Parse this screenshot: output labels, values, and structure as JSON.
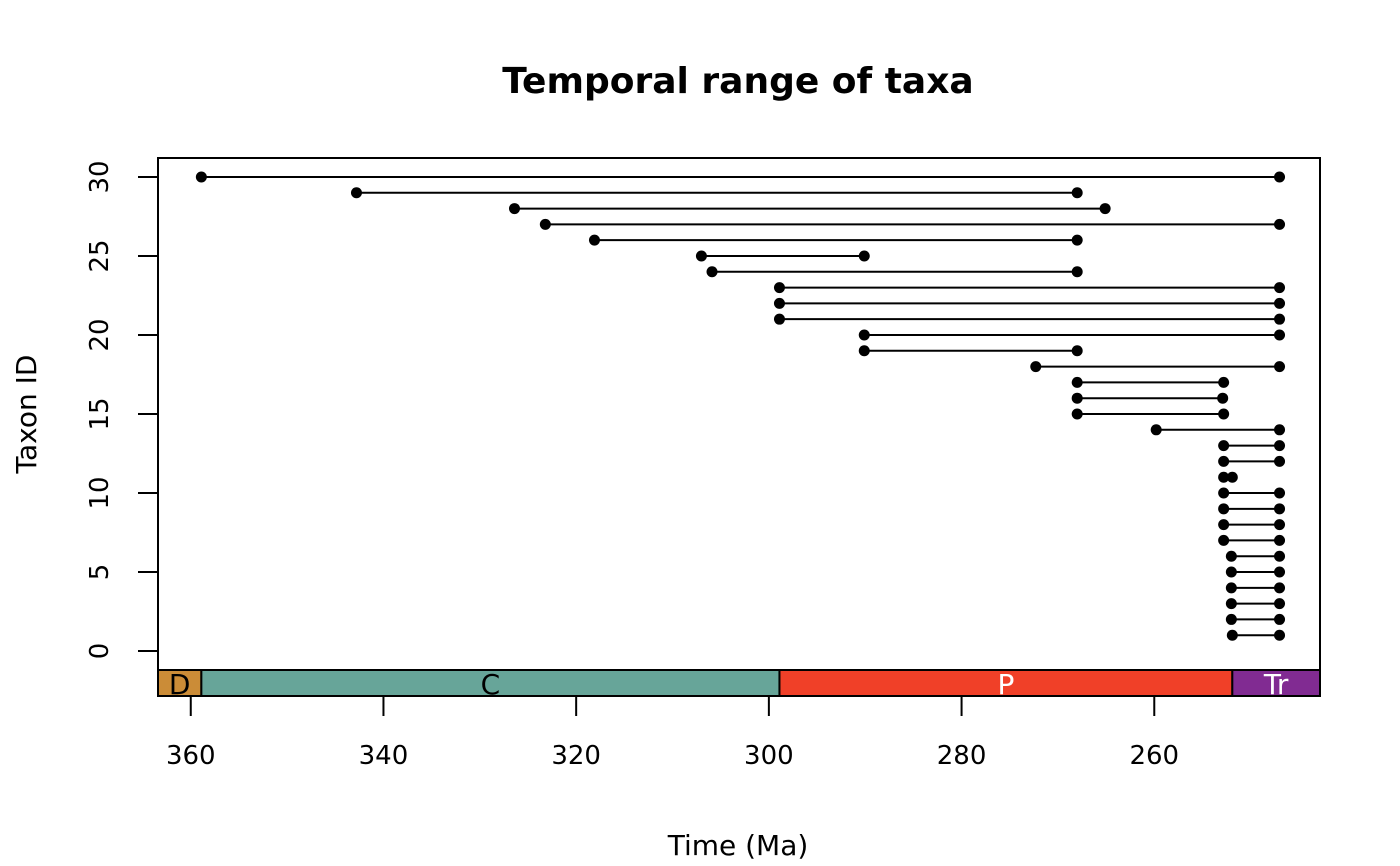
{
  "chart_data": {
    "type": "range",
    "title": "Temporal range of taxa",
    "xlabel": "Time (Ma)",
    "ylabel": "Taxon ID",
    "x_reversed": true,
    "xlim": [
      363.4,
      242.8
    ],
    "ylim": [
      -1.2,
      31.2
    ],
    "x_ticks": [
      360,
      340,
      320,
      300,
      280,
      260
    ],
    "y_ticks": [
      0,
      5,
      10,
      15,
      20,
      25,
      30
    ],
    "grid": false,
    "ranges": [
      {
        "taxon": 1,
        "start": 251.9,
        "end": 247.0
      },
      {
        "taxon": 2,
        "start": 252.0,
        "end": 247.0
      },
      {
        "taxon": 3,
        "start": 252.0,
        "end": 247.0
      },
      {
        "taxon": 4,
        "start": 252.0,
        "end": 247.0
      },
      {
        "taxon": 5,
        "start": 252.0,
        "end": 247.0
      },
      {
        "taxon": 6,
        "start": 252.0,
        "end": 247.0
      },
      {
        "taxon": 7,
        "start": 252.8,
        "end": 247.0
      },
      {
        "taxon": 8,
        "start": 252.8,
        "end": 247.0
      },
      {
        "taxon": 9,
        "start": 252.8,
        "end": 247.0
      },
      {
        "taxon": 10,
        "start": 252.8,
        "end": 247.0
      },
      {
        "taxon": 11,
        "start": 252.8,
        "end": 251.9
      },
      {
        "taxon": 12,
        "start": 252.8,
        "end": 247.0
      },
      {
        "taxon": 13,
        "start": 252.8,
        "end": 247.0
      },
      {
        "taxon": 14,
        "start": 259.8,
        "end": 247.0
      },
      {
        "taxon": 15,
        "start": 268.0,
        "end": 252.8
      },
      {
        "taxon": 16,
        "start": 268.0,
        "end": 252.9
      },
      {
        "taxon": 17,
        "start": 268.0,
        "end": 252.8
      },
      {
        "taxon": 18,
        "start": 272.3,
        "end": 247.0
      },
      {
        "taxon": 19,
        "start": 290.1,
        "end": 268.0
      },
      {
        "taxon": 20,
        "start": 290.1,
        "end": 247.0
      },
      {
        "taxon": 21,
        "start": 298.9,
        "end": 247.0
      },
      {
        "taxon": 22,
        "start": 298.9,
        "end": 247.0
      },
      {
        "taxon": 23,
        "start": 298.9,
        "end": 247.0
      },
      {
        "taxon": 24,
        "start": 305.9,
        "end": 268.0
      },
      {
        "taxon": 25,
        "start": 307.0,
        "end": 290.1
      },
      {
        "taxon": 26,
        "start": 318.1,
        "end": 268.0
      },
      {
        "taxon": 27,
        "start": 323.2,
        "end": 247.0
      },
      {
        "taxon": 28,
        "start": 326.4,
        "end": 265.1
      },
      {
        "taxon": 29,
        "start": 342.8,
        "end": 268.0
      },
      {
        "taxon": 30,
        "start": 358.9,
        "end": 247.0
      }
    ],
    "periods": [
      {
        "label": "D",
        "start": 363.4,
        "end": 358.9,
        "color": "#CB8C37",
        "text_color": "#000000"
      },
      {
        "label": "C",
        "start": 358.9,
        "end": 298.9,
        "color": "#67A599",
        "text_color": "#000000"
      },
      {
        "label": "P",
        "start": 298.9,
        "end": 251.9,
        "color": "#F04028",
        "text_color": "#FFFFFF"
      },
      {
        "label": "Tr",
        "start": 251.9,
        "end": 242.8,
        "color": "#812B92",
        "text_color": "#FFFFFF"
      }
    ]
  }
}
